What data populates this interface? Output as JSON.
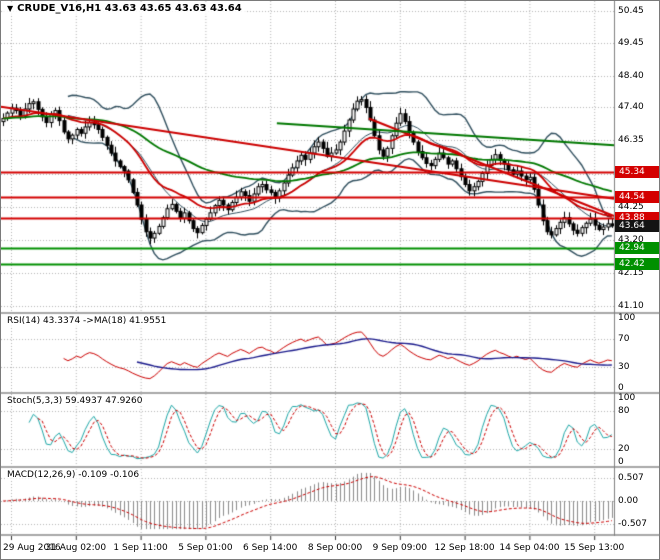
{
  "title_bar": {
    "collapse_icon": "▼",
    "symbol": "CRUDE_V16,H1",
    "ohlc": "43.63 43.65 43.63 43.64"
  },
  "chart_data": {
    "type": "candlestick",
    "symbol": "CRUDE_V16",
    "timeframe": "H1",
    "x_labels": [
      "29 Aug 2016",
      "31 Aug 02:00",
      "1 Sep 11:00",
      "5 Sep 01:00",
      "6 Sep 14:00",
      "8 Sep 00:00",
      "9 Sep 09:00",
      "12 Sep 18:00",
      "14 Sep 04:00",
      "15 Sep 13:00"
    ],
    "y_axis_ticks": [
      "50.45",
      "49.45",
      "48.40",
      "47.40",
      "46.35",
      "45.30",
      "44.25",
      "43.20",
      "42.15",
      "41.10"
    ],
    "ylim": [
      40.9,
      50.75
    ],
    "closes": [
      47.05,
      47.22,
      47.38,
      47.3,
      47.12,
      47.35,
      47.52,
      47.58,
      47.34,
      47.1,
      46.92,
      47.18,
      47.3,
      46.98,
      46.62,
      46.4,
      46.52,
      46.7,
      46.58,
      46.78,
      46.92,
      46.85,
      46.7,
      46.45,
      46.2,
      45.95,
      45.7,
      45.52,
      45.38,
      45.1,
      44.7,
      44.3,
      43.85,
      43.45,
      43.25,
      43.4,
      43.62,
      43.9,
      44.18,
      44.32,
      44.1,
      43.88,
      44.05,
      43.8,
      43.55,
      43.42,
      43.65,
      43.85,
      44.05,
      44.28,
      44.45,
      44.3,
      44.15,
      44.38,
      44.55,
      44.72,
      44.6,
      44.42,
      44.65,
      44.88,
      44.95,
      44.78,
      44.7,
      44.52,
      44.75,
      45.0,
      45.25,
      45.48,
      45.7,
      45.88,
      45.75,
      45.95,
      46.15,
      46.3,
      46.1,
      45.85,
      45.95,
      46.05,
      46.3,
      46.65,
      47.0,
      47.35,
      47.6,
      47.65,
      47.4,
      47.0,
      46.5,
      46.05,
      45.85,
      46.1,
      46.5,
      46.9,
      47.2,
      46.95,
      46.6,
      46.3,
      46.0,
      45.8,
      45.62,
      45.55,
      45.75,
      45.95,
      45.8,
      45.6,
      45.7,
      45.45,
      45.2,
      44.95,
      44.75,
      44.88,
      45.05,
      45.3,
      45.55,
      45.75,
      45.9,
      45.72,
      45.6,
      45.42,
      45.28,
      45.38,
      45.22,
      45.1,
      45.18,
      44.8,
      44.3,
      43.8,
      43.45,
      43.35,
      43.55,
      43.75,
      43.9,
      43.7,
      43.5,
      43.4,
      43.58,
      43.72,
      43.85,
      43.66,
      43.52,
      43.6,
      43.7,
      43.64
    ],
    "price_tags": [
      {
        "value": "45.34",
        "bg": "#d40000"
      },
      {
        "value": "44.54",
        "bg": "#d40000"
      },
      {
        "value": "43.88",
        "bg": "#d40000"
      },
      {
        "value": "43.64",
        "bg": "#141414"
      },
      {
        "value": "42.94",
        "bg": "#009000"
      },
      {
        "value": "42.42",
        "bg": "#009000"
      }
    ],
    "h_lines": [
      {
        "price": 45.34,
        "color": "#d40000"
      },
      {
        "price": 44.54,
        "color": "#d40000"
      },
      {
        "price": 43.88,
        "color": "#d40000"
      },
      {
        "price": 42.94,
        "color": "#009000"
      },
      {
        "price": 42.42,
        "color": "#009000"
      }
    ],
    "trend_lines": [
      {
        "x1": 0.0,
        "p1": 47.42,
        "x2": 1.0,
        "p2": 44.5,
        "color": "#cc0000"
      },
      {
        "x1": 0.6,
        "p1": 47.05,
        "x2": 1.0,
        "p2": 43.95,
        "color": "#cc0000"
      },
      {
        "x1": 0.45,
        "p1": 46.9,
        "x2": 1.0,
        "p2": 46.2,
        "color": "#007800"
      }
    ],
    "indicators": {
      "bollinger": {
        "period": 16,
        "deviation": 2,
        "color": "#31505f"
      },
      "ma_fast": {
        "period": 20,
        "color": "#cc0000"
      },
      "ma_slow": {
        "period": 60,
        "color": "#007800"
      }
    },
    "panels": [
      {
        "id": "rsi",
        "label": "RSI(14) 43.3374 ->MA(18) 41.9551",
        "ticks": [
          "100",
          "70",
          "30",
          "0"
        ],
        "levels": [
          70,
          30
        ],
        "range": [
          0,
          100
        ],
        "line_color": "#cc0000",
        "ma_color": "#1a1a8c"
      },
      {
        "id": "stoch",
        "label": "Stoch(5,3,3) 59.4937 47.9260",
        "ticks": [
          "100",
          "80",
          "20",
          "0"
        ],
        "levels": [
          80,
          20
        ],
        "range": [
          0,
          100
        ],
        "k_color": "#1ea8a8",
        "d_color": "#cc0000"
      },
      {
        "id": "macd",
        "label": "MACD(12,26,9) -0.109 -0.106",
        "ticks": [
          "0.507",
          "0.00",
          "-0.507"
        ],
        "levels": [
          0.507,
          0,
          -0.507
        ],
        "range": [
          -0.65,
          0.65
        ],
        "hist_color": "#8c8c8c",
        "signal_color": "#cc0000"
      }
    ]
  },
  "colors": {
    "background": "#ffffff",
    "grid": "#b4b4b4",
    "candle": "#000000",
    "separator": "#a6a6a6",
    "axis_border": "#808080"
  }
}
